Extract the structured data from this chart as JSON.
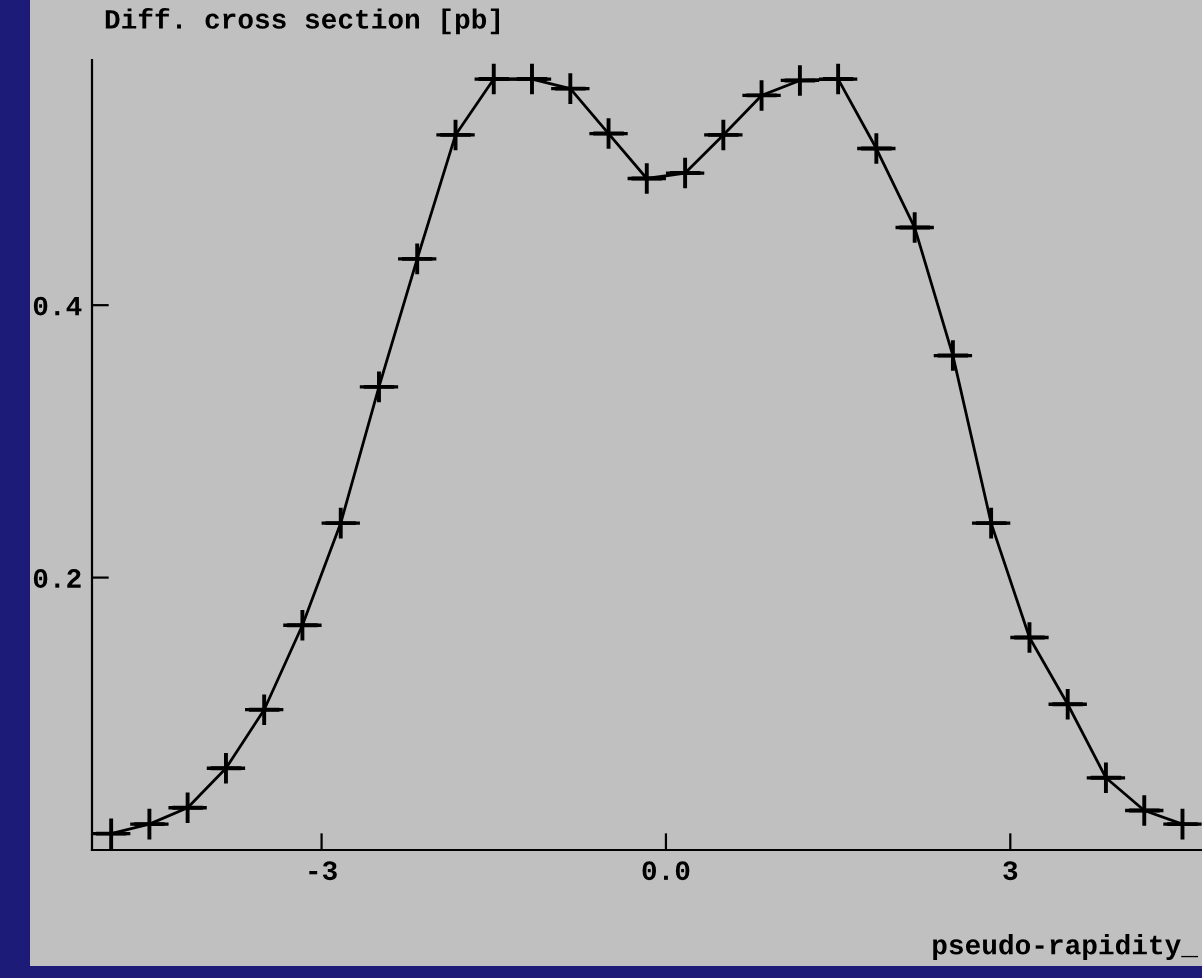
{
  "chart_data": {
    "type": "line",
    "title": "Diff. cross section [pb]",
    "xlabel": "pseudo-rapidity_",
    "x": [
      -4.833,
      -4.5,
      -4.167,
      -3.833,
      -3.5,
      -3.167,
      -2.833,
      -2.5,
      -2.167,
      -1.833,
      -1.5,
      -1.167,
      -0.833,
      -0.5,
      -0.167,
      0.167,
      0.5,
      0.833,
      1.167,
      1.5,
      1.833,
      2.167,
      2.5,
      2.833,
      3.167,
      3.5,
      3.833,
      4.167,
      4.5
    ],
    "series": [
      {
        "type": "scatter",
        "color": "#000000",
        "marker": "cross",
        "values": [
          0.012,
          0.019,
          0.031,
          0.06,
          0.103,
          0.165,
          0.24,
          0.34,
          0.434,
          0.525,
          0.566,
          0.566,
          0.559,
          0.526,
          0.493,
          0.497,
          0.525,
          0.554,
          0.565,
          0.566,
          0.515,
          0.457,
          0.363,
          0.24,
          0.156,
          0.107,
          0.053,
          0.029,
          0.019
        ],
        "xerrors": [
          0.167,
          0.167,
          0.167,
          0.167,
          0.167,
          0.167,
          0.167,
          0.167,
          0.167,
          0.167,
          0.167,
          0.167,
          0.167,
          0.167,
          0.167,
          0.167,
          0.167,
          0.167,
          0.167,
          0.167,
          0.167,
          0.167,
          0.167,
          0.167,
          0.167,
          0.167,
          0.167,
          0.167,
          0.167
        ]
      },
      {
        "color": "#000000",
        "values": [
          0.012,
          0.019,
          0.031,
          0.06,
          0.103,
          0.165,
          0.24,
          0.34,
          0.434,
          0.525,
          0.566,
          0.566,
          0.559,
          0.526,
          0.493,
          0.497,
          0.525,
          0.554,
          0.565,
          0.566,
          0.515,
          0.457,
          0.363,
          0.24,
          0.156,
          0.107,
          0.053,
          0.029,
          0.019
        ]
      }
    ],
    "xlim": [
      -5.0,
      4.67
    ],
    "ylim": [
      0.0,
      0.58
    ],
    "xticks": [
      -3,
      {
        "value": 0,
        "label": "0.0"
      },
      3
    ],
    "yticks": [
      0.2,
      0.4
    ],
    "grid": false,
    "legend": false
  }
}
